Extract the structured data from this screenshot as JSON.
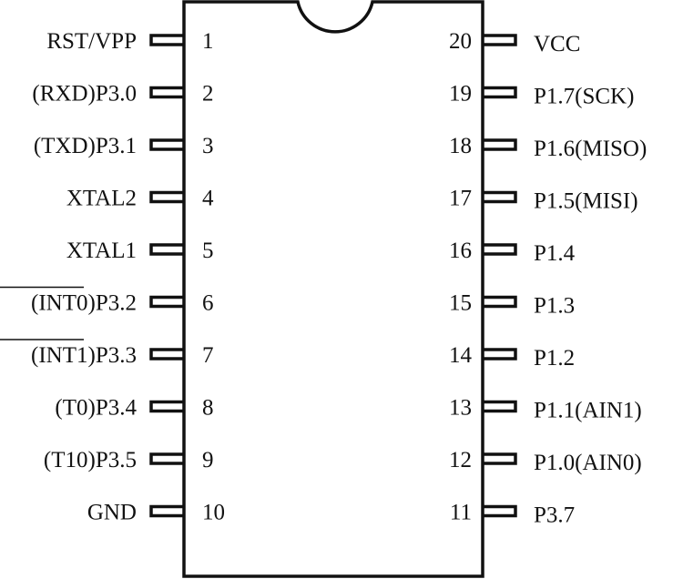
{
  "chip": {
    "left_pins": [
      {
        "number": "1",
        "label": "RST/VPP",
        "overline": ""
      },
      {
        "number": "2",
        "label": "(RXD)P3.0",
        "overline": ""
      },
      {
        "number": "3",
        "label": "(TXD)P3.1",
        "overline": ""
      },
      {
        "number": "4",
        "label": "XTAL2",
        "overline": ""
      },
      {
        "number": "5",
        "label": "XTAL1",
        "overline": ""
      },
      {
        "number": "6",
        "label": "P3.2",
        "overline": "(INT0)"
      },
      {
        "number": "7",
        "label": "P3.3",
        "overline": "(INT1)"
      },
      {
        "number": "8",
        "label": "(T0)P3.4",
        "overline": ""
      },
      {
        "number": "9",
        "label": "(T10)P3.5",
        "overline": ""
      },
      {
        "number": "10",
        "label": "GND",
        "overline": ""
      }
    ],
    "right_pins": [
      {
        "number": "20",
        "label": "VCC"
      },
      {
        "number": "19",
        "label": "P1.7(SCK)"
      },
      {
        "number": "18",
        "label": "P1.6(MISO)"
      },
      {
        "number": "17",
        "label": "P1.5(MISI)"
      },
      {
        "number": "16",
        "label": "P1.4"
      },
      {
        "number": "15",
        "label": "P1.3"
      },
      {
        "number": "14",
        "label": "P1.2"
      },
      {
        "number": "13",
        "label": "P1.1(AIN1)"
      },
      {
        "number": "12",
        "label": "P1.0(AIN0)"
      },
      {
        "number": "11",
        "label": "P3.7"
      }
    ]
  }
}
